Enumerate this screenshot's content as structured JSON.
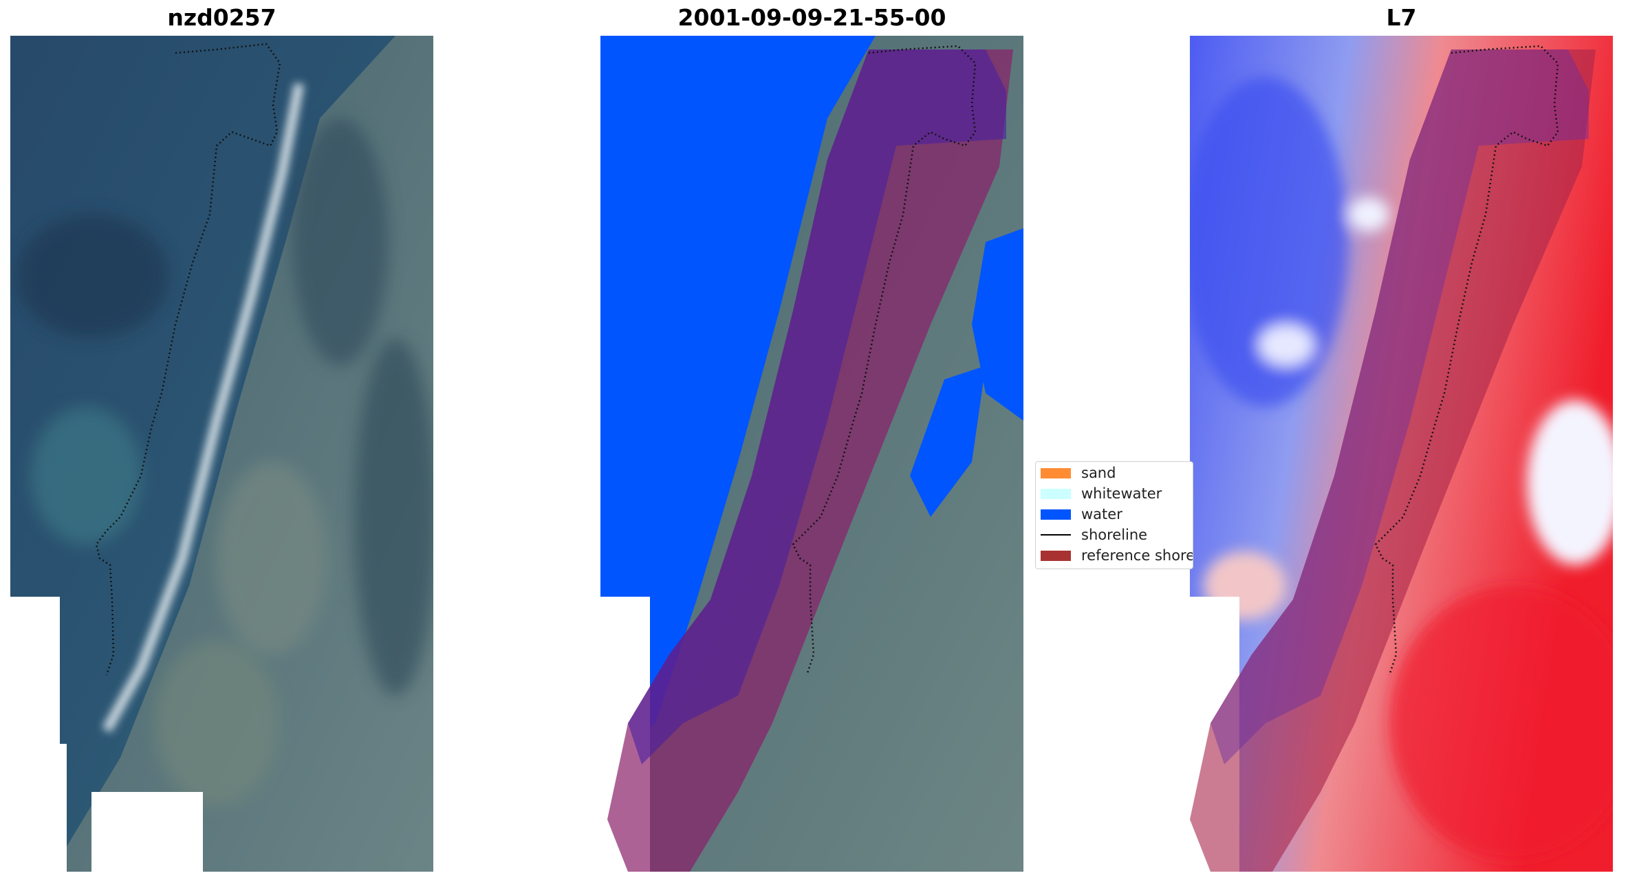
{
  "panels": [
    {
      "title": "nzd0257"
    },
    {
      "title": "2001-09-09-21-55-00"
    },
    {
      "title": "L7"
    }
  ],
  "legend": {
    "items": [
      {
        "label": "sand",
        "color": "#ff8c33",
        "kind": "patch"
      },
      {
        "label": "whitewater",
        "color": "#ccffff",
        "kind": "patch"
      },
      {
        "label": "water",
        "color": "#0055ff",
        "kind": "patch"
      },
      {
        "label": "shoreline",
        "color": "#000000",
        "kind": "line"
      },
      {
        "label": "reference shoreline buffer",
        "color": "#a83232",
        "kind": "patch"
      }
    ]
  },
  "colors": {
    "sea_dark": "#1f3f5c",
    "land": "#4b6b70",
    "water_class": "#0055ff",
    "buffer_purple": "#5a2a8f",
    "buffer_red": "#a8254a",
    "index_blue": "#4d5cf2",
    "index_red": "#f01e2c"
  }
}
